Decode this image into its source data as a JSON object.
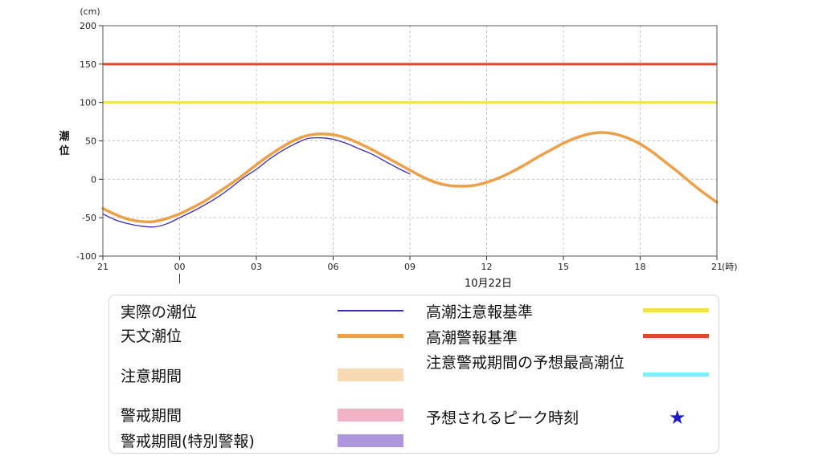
{
  "chart_data": {
    "type": "line",
    "y_unit": "(cm)",
    "x_unit": "(時)",
    "ylabel": "潮位",
    "date_label": "10月22日",
    "ylim": [
      -100,
      200
    ],
    "y_ticks": [
      "200",
      "150",
      "100",
      "50",
      "0",
      "-50",
      "-100"
    ],
    "x_tick_labels": [
      "21",
      "00",
      "03",
      "06",
      "09",
      "12",
      "15",
      "18",
      "21"
    ],
    "x_tick_hours": [
      -3,
      0,
      3,
      6,
      9,
      12,
      15,
      18,
      21
    ],
    "grid": true,
    "thresholds": [
      {
        "name": "高潮注意報基準",
        "value": 100,
        "color": "#f2e24a"
      },
      {
        "name": "高潮警報基準",
        "value": 150,
        "color": "#e04a2c"
      }
    ],
    "series": [
      {
        "name": "天文潮位",
        "color": "#eda04a",
        "x": [
          -3,
          -2.5,
          -2,
          -1.5,
          -1,
          -0.5,
          0,
          0.5,
          1,
          1.5,
          2,
          2.5,
          3,
          3.5,
          4,
          4.5,
          5,
          5.5,
          6,
          6.5,
          7,
          7.5,
          8,
          8.5,
          9,
          9.5,
          10,
          10.5,
          11,
          11.5,
          12,
          12.5,
          13,
          13.5,
          14,
          14.5,
          15,
          15.5,
          16,
          16.5,
          17,
          17.5,
          18,
          18.5,
          19,
          19.5,
          20,
          20.5,
          21
        ],
        "values": [
          -38,
          -46,
          -52,
          -55,
          -55,
          -51,
          -45,
          -37,
          -28,
          -17,
          -6,
          6,
          19,
          31,
          42,
          51,
          57,
          59,
          58,
          54,
          47,
          39,
          30,
          21,
          12,
          3,
          -4,
          -8,
          -9,
          -8,
          -4,
          2,
          10,
          19,
          29,
          38,
          47,
          54,
          59,
          61,
          59,
          54,
          46,
          35,
          22,
          9,
          -5,
          -18,
          -30
        ]
      },
      {
        "name": "実際の潮位",
        "color": "#3a2bb0",
        "x": [
          -3,
          -2.5,
          -2,
          -1.5,
          -1,
          -0.5,
          0,
          0.5,
          1,
          1.5,
          2,
          2.5,
          3,
          3.5,
          4,
          4.5,
          5,
          5.5,
          6,
          6.5,
          7,
          7.5,
          8,
          8.5,
          9
        ],
        "values": [
          -45,
          -53,
          -58,
          -61,
          -62,
          -58,
          -50,
          -42,
          -33,
          -23,
          -11,
          2,
          13,
          26,
          37,
          46,
          53,
          54,
          52,
          47,
          40,
          33,
          24,
          15,
          7
        ]
      }
    ]
  },
  "legend": {
    "items": [
      {
        "label": "実際の潮位",
        "kind": "line",
        "color": "#3a2bb0"
      },
      {
        "label": "天文潮位",
        "kind": "line",
        "color": "#eda04a"
      },
      {
        "label": "注意期間",
        "kind": "band",
        "color": "#f8dbb5"
      },
      {
        "label": "警戒期間",
        "kind": "band",
        "color": "#f2b3c6"
      },
      {
        "label": "警戒期間(特別警報)",
        "kind": "band",
        "color": "#ae97dc"
      },
      {
        "label": "高潮注意報基準",
        "kind": "line",
        "color": "#f2e24a"
      },
      {
        "label": "高潮警報基準",
        "kind": "line",
        "color": "#e04a2c"
      },
      {
        "label": "注意警戒期間の予想最高潮位",
        "kind": "line",
        "color": "#7eeefa"
      },
      {
        "label": "予想されるピーク時刻",
        "kind": "star",
        "color": "#1a1ac8",
        "icon": "★"
      }
    ]
  }
}
